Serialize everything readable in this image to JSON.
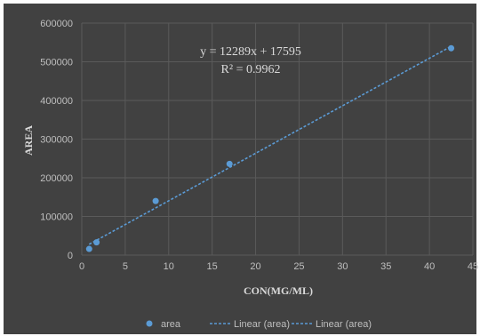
{
  "colors": {
    "background": "#414141",
    "grid": "#5a5a5a",
    "point": "#5b9bd5",
    "trendline": "#5b9bd5",
    "text": "#bfbfbf"
  },
  "chart_data": {
    "type": "scatter",
    "xlabel": "CON(MG/ML)",
    "ylabel": "AREA",
    "xlim": [
      0,
      45
    ],
    "ylim": [
      0,
      600000
    ],
    "x_ticks": [
      "0",
      "5",
      "10",
      "15",
      "20",
      "25",
      "30",
      "35",
      "40",
      "45"
    ],
    "y_ticks": [
      "0",
      "100000",
      "200000",
      "300000",
      "400000",
      "500000",
      "600000"
    ],
    "grid": true,
    "legend_position": "bottom",
    "series": [
      {
        "name": "area",
        "kind": "points",
        "x": [
          0.85,
          1.7,
          8.5,
          17,
          42.5
        ],
        "y": [
          16000,
          33000,
          140000,
          236000,
          535000
        ]
      },
      {
        "name": "Linear (area)",
        "kind": "trendline",
        "slope": 12289,
        "intercept": 17595
      },
      {
        "name": "Linear (area)",
        "kind": "trendline",
        "slope": 12289,
        "intercept": 17595
      }
    ],
    "annotations": {
      "equation": "y = 12289x + 17595",
      "r_squared": "R² = 0.9962"
    }
  }
}
